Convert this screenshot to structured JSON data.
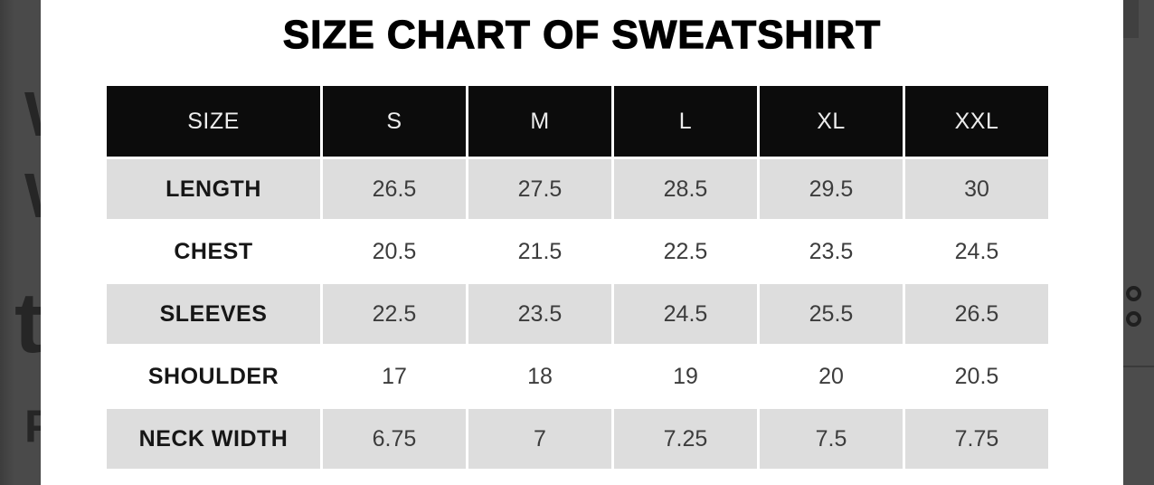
{
  "title": "SIZE CHART OF SWEATSHIRT",
  "table": {
    "columns": [
      "SIZE",
      "S",
      "M",
      "L",
      "XL",
      "XXL"
    ],
    "rows": [
      {
        "label": "LENGTH",
        "values": [
          "26.5",
          "27.5",
          "28.5",
          "29.5",
          "30"
        ]
      },
      {
        "label": "CHEST",
        "values": [
          "20.5",
          "21.5",
          "22.5",
          "23.5",
          "24.5"
        ]
      },
      {
        "label": "SLEEVES",
        "values": [
          "22.5",
          "23.5",
          "24.5",
          "25.5",
          "26.5"
        ]
      },
      {
        "label": "SHOULDER",
        "values": [
          "17",
          "18",
          "19",
          "20",
          "20.5"
        ]
      },
      {
        "label": "NECK WIDTH",
        "values": [
          "6.75",
          "7",
          "7.25",
          "7.5",
          "7.75"
        ]
      }
    ]
  },
  "background": {
    "left_letter_fragments": [
      {
        "name": "letter-fragment-w-upper",
        "glyph": "W"
      },
      {
        "name": "letter-fragment-w-lower",
        "glyph": "W"
      },
      {
        "name": "letter-fragment-t",
        "glyph": "t"
      },
      {
        "name": "letter-fragment-p",
        "glyph": "P"
      }
    ],
    "right_letter_fragments": [
      {
        "name": "letter-fragment-o-upper"
      },
      {
        "name": "letter-fragment-o-lower"
      }
    ]
  },
  "colors": {
    "header_bg": "#0c0c0c",
    "header_text": "#ededed",
    "alt_row_bg": "#dddddd",
    "value_text": "#3c3c3c",
    "page_strip": "#4a4a4a",
    "image_bg": "#ffffff",
    "title_text": "#000000"
  }
}
